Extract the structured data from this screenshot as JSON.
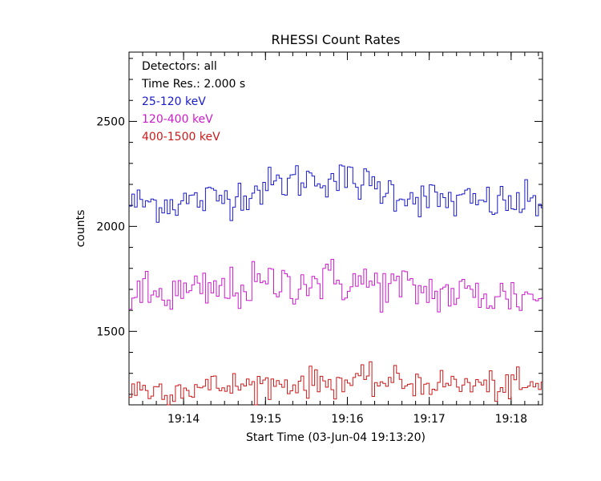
{
  "chart_data": {
    "type": "line",
    "title": "RHESSI Count Rates",
    "xlabel": "Start Time (03-Jun-04 19:13:20)",
    "ylabel": "counts",
    "x_start": "19:13:20",
    "x_range_seconds": [
      0,
      303
    ],
    "time_resolution_seconds": 2.0,
    "ylim": [
      1150,
      2830
    ],
    "x_tick_labels": [
      "19:14",
      "19:15",
      "19:16",
      "19:17",
      "19:18"
    ],
    "y_ticks": [
      1500,
      2000,
      2500
    ],
    "y_tick_labels": [
      "1500",
      "2000",
      "2500"
    ],
    "legend_position": "top-left",
    "annotations": [
      "Detectors: all",
      "Time Res.: 2.000 s"
    ],
    "colors": {
      "axis": "#000000",
      "background": "#ffffff"
    },
    "series": [
      {
        "name": "25-120 keV",
        "color": "#1a1acc",
        "mean": 2110,
        "amplitude": 120,
        "noise": 45,
        "peak_time_s": 140,
        "peak_width_s": 60
      },
      {
        "name": "120-400 keV",
        "color": "#cc1acc",
        "mean": 1665,
        "amplitude": 75,
        "noise": 55,
        "peak_time_s": 140,
        "peak_width_s": 75
      },
      {
        "name": "400-1500 keV",
        "color": "#cc1a1a",
        "mean": 1215,
        "amplitude": 45,
        "noise": 35,
        "peak_time_s": 170,
        "peak_width_s": 120
      }
    ]
  }
}
